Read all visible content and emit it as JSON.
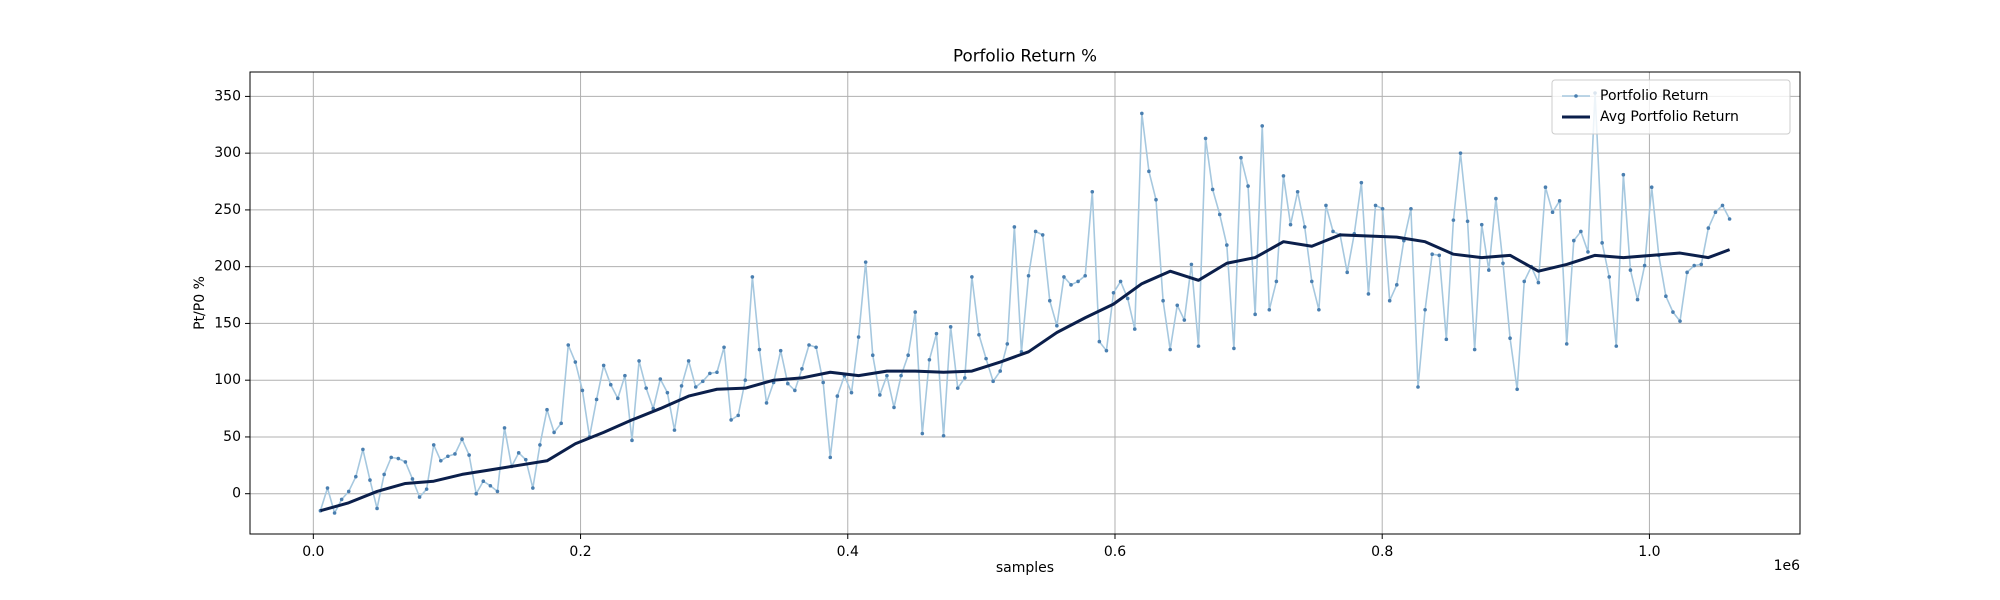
{
  "chart_data": {
    "type": "line",
    "title": "Porfolio Return %",
    "x_label": "samples",
    "y_label": "Pt/P0 %",
    "x_offset_label": "1e6",
    "x": [
      5300,
      10600,
      15900,
      21200,
      26500,
      31800,
      37100,
      42400,
      47700,
      53000,
      58300,
      63600,
      68900,
      74200,
      79500,
      84800,
      90100,
      95400,
      100700,
      106000,
      111300,
      116600,
      121900,
      127200,
      132500,
      137800,
      143100,
      148400,
      153700,
      159000,
      164300,
      169600,
      174900,
      180200,
      185500,
      190800,
      196100,
      201400,
      206700,
      212000,
      217300,
      222600,
      227900,
      233200,
      238500,
      243800,
      249100,
      254400,
      259700,
      265000,
      270300,
      275600,
      280900,
      286200,
      291500,
      296800,
      302100,
      307400,
      312700,
      318000,
      323300,
      328600,
      333900,
      339200,
      344500,
      349800,
      355100,
      360400,
      365700,
      371000,
      376300,
      381600,
      386900,
      392200,
      397500,
      402800,
      408100,
      413400,
      418700,
      424000,
      429300,
      434600,
      439900,
      445200,
      450500,
      455800,
      461100,
      466400,
      471700,
      477000,
      482300,
      487600,
      492900,
      498200,
      503500,
      508800,
      514100,
      519400,
      524700,
      530000,
      535300,
      540600,
      545900,
      551200,
      556500,
      561800,
      567100,
      572400,
      577700,
      583000,
      588300,
      593600,
      598900,
      604200,
      609500,
      614800,
      620100,
      625400,
      630700,
      636000,
      641300,
      646600,
      651900,
      657200,
      662500,
      667800,
      673100,
      678400,
      683700,
      689000,
      694300,
      699600,
      704900,
      710200,
      715500,
      720800,
      726100,
      731400,
      736700,
      742000,
      747300,
      752600,
      757900,
      763200,
      768500,
      773800,
      779100,
      784400,
      789700,
      795000,
      800300,
      805600,
      810900,
      816200,
      821500,
      826800,
      832100,
      837400,
      842700,
      848000,
      853300,
      858600,
      863900,
      869200,
      874500,
      879800,
      885100,
      890400,
      895700,
      901000,
      906300,
      911600,
      916900,
      922200,
      927500,
      932800,
      938100,
      943400,
      948700,
      954000,
      959300,
      964600,
      969900,
      975200,
      980500,
      985800,
      991100,
      996400,
      1001700,
      1007000,
      1012300,
      1017600,
      1022900,
      1028200,
      1033500,
      1038800,
      1044100,
      1049400,
      1054700,
      1060000
    ],
    "series": [
      {
        "name": "Portfolio Return",
        "color": "#a6c8df",
        "marker_color": "#4a7fb0",
        "values": [
          -15,
          5,
          -17,
          -5,
          2,
          15,
          39,
          12,
          -13,
          17,
          32,
          31,
          28,
          13,
          -3,
          4,
          43,
          29,
          33,
          35,
          48,
          34,
          0,
          11,
          7,
          2,
          58,
          24,
          36,
          30,
          5,
          43,
          74,
          54,
          62,
          131,
          116,
          91,
          50,
          83,
          113,
          96,
          84,
          104,
          47,
          117,
          93,
          75,
          101,
          89,
          56,
          95,
          117,
          94,
          99,
          106,
          107,
          129,
          65,
          69,
          100,
          191,
          127,
          80,
          98,
          126,
          97,
          91,
          110,
          131,
          129,
          98,
          32,
          86,
          104,
          89,
          138,
          204,
          122,
          87,
          104,
          76,
          104,
          122,
          160,
          53,
          118,
          141,
          51,
          147,
          93,
          102,
          191,
          140,
          119,
          99,
          108,
          132,
          235,
          125,
          192,
          231,
          228,
          170,
          148,
          191,
          184,
          187,
          192,
          266,
          134,
          126,
          177,
          187,
          172,
          145,
          335,
          284,
          259,
          170,
          127,
          166,
          153,
          202,
          130,
          313,
          268,
          246,
          219,
          128,
          296,
          271,
          158,
          324,
          162,
          187,
          280,
          237,
          266,
          235,
          187,
          162,
          254,
          231,
          228,
          195,
          229,
          274,
          176,
          254,
          251,
          170,
          184,
          223,
          251,
          94,
          162,
          211,
          210,
          136,
          241,
          300,
          240,
          127,
          237,
          197,
          260,
          203,
          137,
          92,
          187,
          200,
          186,
          270,
          248,
          258,
          132,
          223,
          231,
          213,
          353,
          221,
          191,
          130,
          281,
          197,
          171,
          201,
          270,
          210,
          174,
          160,
          152,
          195,
          201,
          202,
          234,
          248,
          254,
          242
        ]
      },
      {
        "name": "Avg Portfolio Return",
        "color": "#0b1f4b",
        "x": [
          5300,
          26500,
          47700,
          68900,
          90100,
          111300,
          132500,
          153700,
          174900,
          196100,
          217300,
          238500,
          259700,
          280900,
          302100,
          323300,
          344500,
          365700,
          386900,
          408100,
          429300,
          450500,
          471700,
          492900,
          514100,
          535300,
          556500,
          577700,
          598900,
          620100,
          641300,
          662500,
          683700,
          704900,
          726100,
          747300,
          768500,
          789700,
          810900,
          832100,
          853300,
          874500,
          895700,
          916900,
          938100,
          959300,
          980500,
          1001700,
          1022900,
          1044100,
          1060000
        ],
        "values": [
          -15,
          -8,
          2,
          9,
          11,
          17,
          21,
          25,
          29,
          44,
          54,
          65,
          75,
          86,
          92,
          93,
          100,
          102,
          107,
          104,
          108,
          108,
          107,
          108,
          116,
          125,
          142,
          155,
          167,
          185,
          196,
          188,
          203,
          208,
          222,
          218,
          228,
          227,
          226,
          222,
          211,
          208,
          210,
          196,
          202,
          210,
          208,
          210,
          212,
          208,
          215
        ]
      }
    ],
    "xlim": [
      -47400,
      1112700
    ],
    "ylim": [
      -35.5,
      371.5
    ],
    "xticks": [
      {
        "value": 0,
        "label": "0.0"
      },
      {
        "value": 200000,
        "label": "0.2"
      },
      {
        "value": 400000,
        "label": "0.4"
      },
      {
        "value": 600000,
        "label": "0.6"
      },
      {
        "value": 800000,
        "label": "0.8"
      },
      {
        "value": 1000000,
        "label": "1.0"
      }
    ],
    "yticks": [
      0,
      50,
      100,
      150,
      200,
      250,
      300,
      350
    ],
    "grid": true,
    "legend": "upper right"
  }
}
